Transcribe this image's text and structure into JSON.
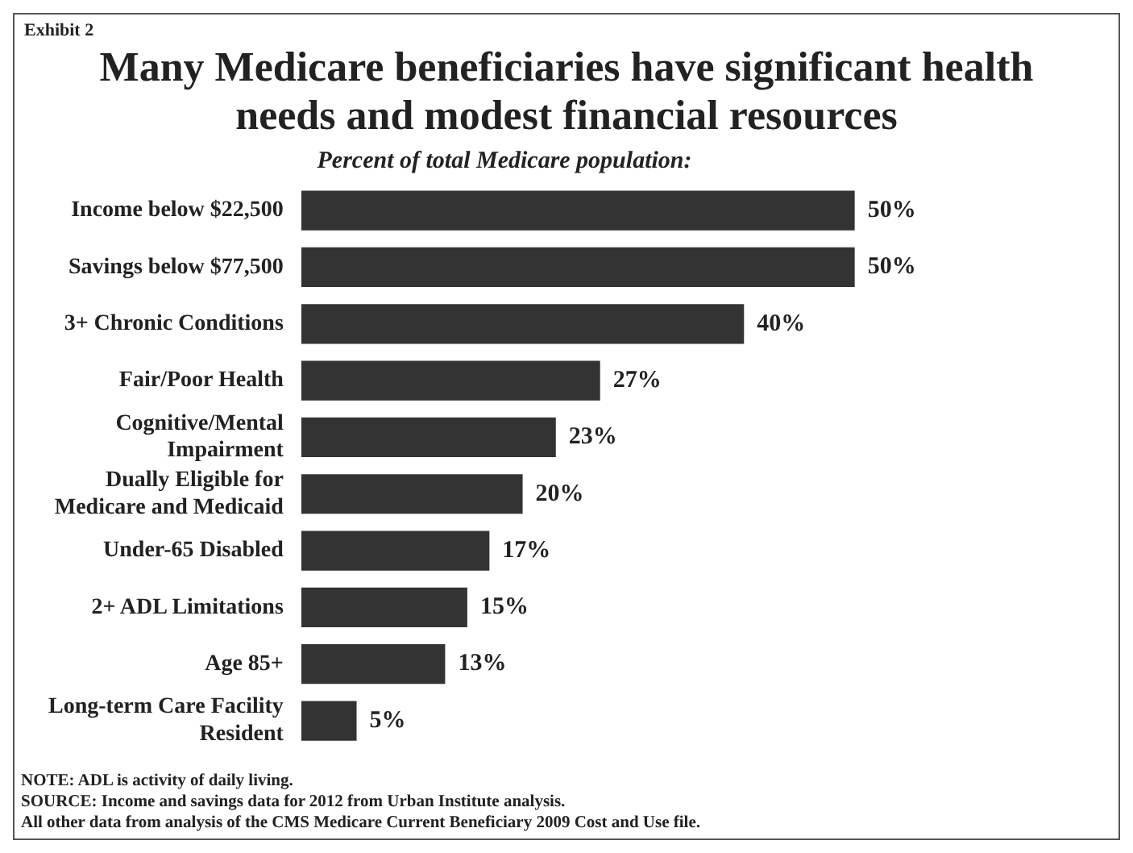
{
  "chart_data": {
    "type": "bar",
    "orientation": "horizontal",
    "title": "Many Medicare beneficiaries have significant health needs and modest financial resources",
    "subtitle": "Percent of total Medicare population:",
    "categories": [
      "Income below $22,500",
      "Savings below $77,500",
      "3+ Chronic Conditions",
      "Fair/Poor Health",
      "Cognitive/Mental Impairment",
      "Dually Eligible for Medicare and Medicaid",
      "Under-65 Disabled",
      "2+ ADL Limitations",
      "Age 85+",
      "Long-term Care Facility Resident"
    ],
    "values": [
      50,
      50,
      40,
      27,
      23,
      20,
      17,
      15,
      13,
      5
    ],
    "value_labels": [
      "50%",
      "50%",
      "40%",
      "27%",
      "23%",
      "20%",
      "17%",
      "15%",
      "13%",
      "5%"
    ],
    "color": "#333333",
    "grid": false,
    "legend": false,
    "annotations": [
      "Exhibit 2",
      "NOTE: ADL is activity of daily living.",
      "SOURCE: Income and savings data for 2012 from Urban Institute analysis.",
      "All other data from analysis of the CMS Medicare Current Beneficiary 2009 Cost and Use file."
    ]
  }
}
